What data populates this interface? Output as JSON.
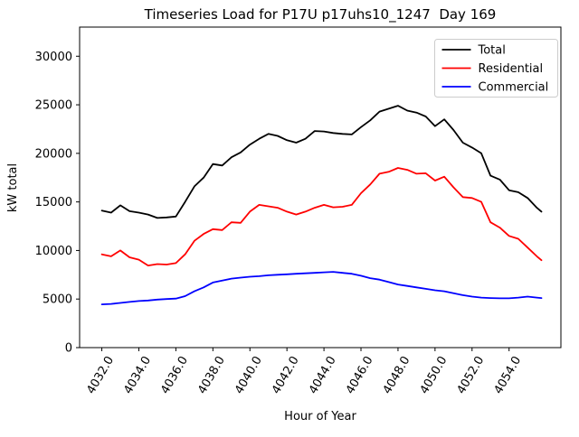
{
  "chart_data": {
    "type": "line",
    "title": "Timeseries Load for P17U p17uhs10_1247  Day 169",
    "xlabel": "Hour of Year",
    "ylabel": "kW total",
    "xlim": [
      4030.8,
      4056.8
    ],
    "ylim": [
      0,
      33000
    ],
    "grid": false,
    "legend_position": "upper right",
    "xticks": [
      4032,
      4034,
      4036,
      4038,
      4040,
      4042,
      4044,
      4046,
      4048,
      4050,
      4052,
      4054
    ],
    "xtick_labels": [
      "4032.0",
      "4034.0",
      "4036.0",
      "4038.0",
      "4040.0",
      "4042.0",
      "4044.0",
      "4046.0",
      "4048.0",
      "4050.0",
      "4052.0",
      "4054.0"
    ],
    "xtick_rotation_deg": 60,
    "yticks": [
      0,
      5000,
      10000,
      15000,
      20000,
      25000,
      30000
    ],
    "ytick_labels": [
      "0",
      "5000",
      "10000",
      "15000",
      "20000",
      "25000",
      "30000"
    ],
    "x": [
      4032.0,
      4032.5,
      4033.0,
      4033.5,
      4034.0,
      4034.5,
      4035.0,
      4035.5,
      4036.0,
      4036.5,
      4037.0,
      4037.5,
      4038.0,
      4038.5,
      4039.0,
      4039.5,
      4040.0,
      4040.5,
      4041.0,
      4041.5,
      4042.0,
      4042.5,
      4043.0,
      4043.5,
      4044.0,
      4044.5,
      4045.0,
      4045.5,
      4046.0,
      4046.5,
      4047.0,
      4047.5,
      4048.0,
      4048.5,
      4049.0,
      4049.5,
      4050.0,
      4050.5,
      4051.0,
      4051.5,
      4052.0,
      4052.5,
      4053.0,
      4053.5,
      4054.0,
      4054.5,
      4055.0,
      4055.5,
      4055.75
    ],
    "series": [
      {
        "name": "Total",
        "color": "#000000",
        "values": [
          14100,
          13900,
          14650,
          14050,
          13900,
          13700,
          13350,
          13400,
          13500,
          15000,
          16600,
          17500,
          18900,
          18750,
          19600,
          20100,
          20900,
          21500,
          22000,
          21800,
          21350,
          21100,
          21500,
          22300,
          22250,
          22100,
          22000,
          21950,
          22700,
          23400,
          24300,
          24600,
          24900,
          24400,
          24200,
          23800,
          22800,
          23500,
          22400,
          21100,
          20600,
          20000,
          17700,
          17300,
          16200,
          16000,
          15400,
          14400,
          14000
        ]
      },
      {
        "name": "Residential",
        "color": "#ff0000",
        "values": [
          9600,
          9400,
          10000,
          9300,
          9050,
          8450,
          8600,
          8550,
          8700,
          9600,
          11000,
          11700,
          12200,
          12100,
          12900,
          12850,
          14000,
          14700,
          14550,
          14400,
          14000,
          13700,
          14000,
          14400,
          14700,
          14450,
          14500,
          14700,
          15900,
          16800,
          17900,
          18100,
          18500,
          18300,
          17900,
          17950,
          17200,
          17600,
          16500,
          15500,
          15400,
          15000,
          12900,
          12350,
          11500,
          11200,
          10300,
          9400,
          9000
        ]
      },
      {
        "name": "Commercial",
        "color": "#0000ff",
        "values": [
          4450,
          4500,
          4600,
          4700,
          4800,
          4850,
          4950,
          5000,
          5050,
          5300,
          5800,
          6200,
          6700,
          6900,
          7100,
          7200,
          7300,
          7350,
          7450,
          7500,
          7550,
          7600,
          7650,
          7700,
          7750,
          7800,
          7700,
          7600,
          7400,
          7150,
          7000,
          6750,
          6500,
          6350,
          6200,
          6050,
          5900,
          5800,
          5600,
          5400,
          5250,
          5150,
          5100,
          5080,
          5080,
          5150,
          5250,
          5150,
          5100
        ]
      }
    ]
  }
}
